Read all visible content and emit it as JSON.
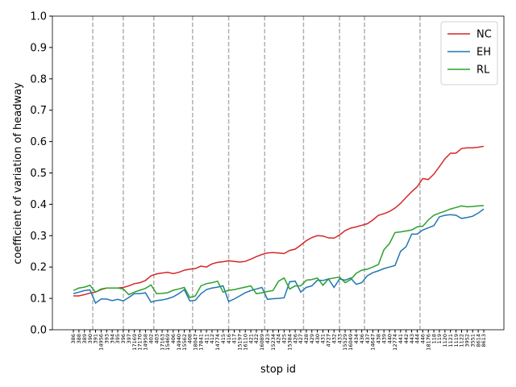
{
  "chart_data": {
    "type": "line",
    "xlabel": "stop id",
    "ylabel": "coefficient of variation of headway",
    "categories": [
      "386",
      "388",
      "389",
      "390",
      "391",
      "14956",
      "393",
      "394",
      "395",
      "396",
      "397",
      "17169",
      "17170",
      "14958",
      "402",
      "403",
      "17163",
      "15469",
      "406",
      "14940",
      "15562",
      "408",
      "18047",
      "17841",
      "411",
      "412",
      "14774",
      "415",
      "416",
      "417",
      "15197",
      "16110",
      "421",
      "422",
      "16089",
      "423",
      "15234",
      "424",
      "425",
      "15384",
      "426",
      "427",
      "428",
      "429",
      "430",
      "431",
      "4727",
      "432",
      "433",
      "15529",
      "16049",
      "434",
      "436",
      "437",
      "14647",
      "438",
      "439",
      "440",
      "12774",
      "441",
      "442",
      "443",
      "444",
      "446",
      "18176",
      "118",
      "119",
      "1120",
      "1121",
      "1119",
      "1122",
      "3952",
      "3551",
      "8614",
      "8613"
    ],
    "series": [
      {
        "name": "NC",
        "color": "#d62728",
        "values": [
          0.108,
          0.108,
          0.112,
          0.117,
          0.12,
          0.128,
          0.133,
          0.133,
          0.133,
          0.135,
          0.14,
          0.147,
          0.15,
          0.157,
          0.172,
          0.178,
          0.181,
          0.183,
          0.179,
          0.183,
          0.19,
          0.193,
          0.195,
          0.203,
          0.2,
          0.21,
          0.215,
          0.217,
          0.22,
          0.218,
          0.216,
          0.218,
          0.225,
          0.233,
          0.24,
          0.245,
          0.246,
          0.245,
          0.243,
          0.253,
          0.257,
          0.27,
          0.284,
          0.294,
          0.3,
          0.299,
          0.293,
          0.292,
          0.302,
          0.316,
          0.324,
          0.328,
          0.333,
          0.338,
          0.35,
          0.365,
          0.37,
          0.377,
          0.388,
          0.403,
          0.422,
          0.44,
          0.456,
          0.482,
          0.479,
          0.496,
          0.52,
          0.545,
          0.563,
          0.563,
          0.578,
          0.58,
          0.58,
          0.582,
          0.585
        ]
      },
      {
        "name": "EH",
        "color": "#1f77b4",
        "values": [
          0.115,
          0.12,
          0.125,
          0.127,
          0.085,
          0.098,
          0.098,
          0.093,
          0.097,
          0.092,
          0.103,
          0.115,
          0.115,
          0.118,
          0.088,
          0.093,
          0.095,
          0.099,
          0.105,
          0.115,
          0.128,
          0.092,
          0.094,
          0.115,
          0.128,
          0.133,
          0.136,
          0.14,
          0.09,
          0.098,
          0.108,
          0.118,
          0.125,
          0.13,
          0.135,
          0.097,
          0.099,
          0.1,
          0.102,
          0.153,
          0.155,
          0.12,
          0.135,
          0.14,
          0.158,
          0.157,
          0.162,
          0.135,
          0.162,
          0.158,
          0.165,
          0.145,
          0.15,
          0.172,
          0.182,
          0.188,
          0.195,
          0.2,
          0.205,
          0.25,
          0.265,
          0.305,
          0.305,
          0.318,
          0.325,
          0.332,
          0.36,
          0.365,
          0.367,
          0.365,
          0.355,
          0.358,
          0.362,
          0.372,
          0.385
        ]
      },
      {
        "name": "RL",
        "color": "#2ca02c",
        "values": [
          0.125,
          0.133,
          0.136,
          0.142,
          0.12,
          0.13,
          0.133,
          0.133,
          0.133,
          0.13,
          0.112,
          0.12,
          0.126,
          0.132,
          0.143,
          0.115,
          0.116,
          0.118,
          0.126,
          0.13,
          0.135,
          0.103,
          0.108,
          0.14,
          0.147,
          0.15,
          0.155,
          0.12,
          0.126,
          0.128,
          0.132,
          0.136,
          0.14,
          0.115,
          0.118,
          0.122,
          0.125,
          0.155,
          0.165,
          0.13,
          0.14,
          0.14,
          0.158,
          0.16,
          0.165,
          0.142,
          0.162,
          0.165,
          0.168,
          0.15,
          0.16,
          0.18,
          0.19,
          0.193,
          0.2,
          0.208,
          0.255,
          0.275,
          0.31,
          0.312,
          0.315,
          0.318,
          0.328,
          0.33,
          0.35,
          0.365,
          0.372,
          0.378,
          0.385,
          0.39,
          0.395,
          0.392,
          0.393,
          0.395,
          0.396
        ]
      }
    ],
    "vlines": [
      3.5,
      9,
      14.5,
      21.5,
      28,
      34.5,
      41.5,
      48,
      52.5,
      62.5
    ],
    "ylim": [
      0,
      1
    ],
    "yticks": [
      {
        "value": 0,
        "label": "0.0"
      },
      {
        "value": 0.1,
        "label": "0.1"
      },
      {
        "value": 0.2,
        "label": "0.2"
      },
      {
        "value": 0.3,
        "label": "0.3"
      },
      {
        "value": 0.4,
        "label": "0.4"
      },
      {
        "value": 0.5,
        "label": "0.5"
      },
      {
        "value": 0.6,
        "label": "0.6"
      },
      {
        "value": 0.7,
        "label": "0.7"
      },
      {
        "value": 0.8,
        "label": "0.8"
      },
      {
        "value": 0.9,
        "label": "0.9"
      },
      {
        "value": 1,
        "label": "1.0"
      }
    ],
    "legend": "upper right"
  }
}
